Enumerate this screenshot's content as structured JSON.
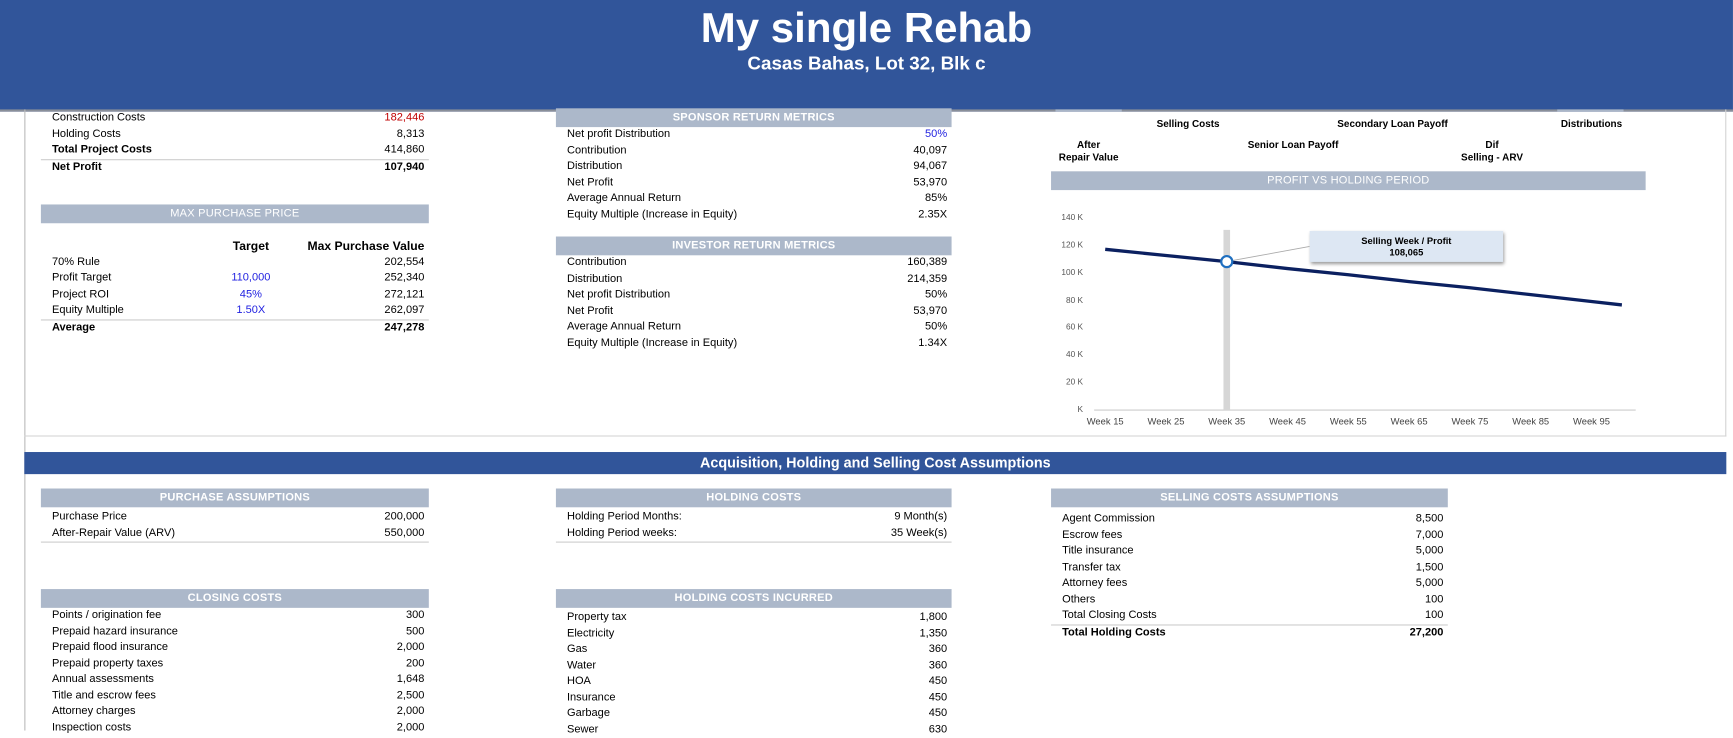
{
  "header": {
    "title": "My single Rehab",
    "subtitle": "Casas Bahas, Lot 32, Blk c"
  },
  "summary": [
    {
      "label": "Construction Costs",
      "value": "182,446",
      "bold": false,
      "valueColor": "#c00000"
    },
    {
      "label": "Holding Costs",
      "value": "8,313",
      "bold": false
    },
    {
      "label": "Total Project Costs",
      "value": "414,860",
      "bold": true
    },
    {
      "label": "Net Profit",
      "value": "107,940",
      "bold": true
    }
  ],
  "max_purchase": {
    "title": "MAX PURCHASE PRICE",
    "col_target": "Target",
    "col_value": "Max Purchase Value",
    "rows": [
      {
        "label": "70% Rule",
        "target": "",
        "value": "202,554"
      },
      {
        "label": "Profit Target",
        "target": "110,000",
        "value": "252,340"
      },
      {
        "label": "Project ROI",
        "target": "45%",
        "value": "272,121"
      },
      {
        "label": "Equity Multiple",
        "target": "1.50X",
        "value": "262,097"
      }
    ],
    "average_label": "Average",
    "average_value": "247,278"
  },
  "sponsor": {
    "title": "SPONSOR RETURN METRICS",
    "rows": [
      {
        "label": "Net profit Distribution",
        "value": "50%",
        "input": true
      },
      {
        "label": "Contribution",
        "value": "40,097"
      },
      {
        "label": "Distribution",
        "value": "94,067"
      },
      {
        "label": "Net Profit",
        "value": "53,970"
      },
      {
        "label": "Average Annual Return",
        "value": "85%"
      },
      {
        "label": "Equity Multiple (Increase in Equity)",
        "value": "2.35X"
      }
    ]
  },
  "investor": {
    "title": "INVESTOR RETURN METRICS",
    "rows": [
      {
        "label": "Contribution",
        "value": "160,389"
      },
      {
        "label": "Distribution",
        "value": "214,359"
      },
      {
        "label": "Net profit Distribution",
        "value": "50%"
      },
      {
        "label": "Net Profit",
        "value": "53,970"
      },
      {
        "label": "Average Annual Return",
        "value": "50%"
      },
      {
        "label": "Equity Multiple (Increase in Equity)",
        "value": "1.34X"
      }
    ]
  },
  "waterfall_labels": {
    "selling_costs": "Selling Costs",
    "secondary_loan": "Secondary Loan Payoff",
    "distributions": "Distributions",
    "after_repair": "After\nRepair Value",
    "senior_loan": "Senior Loan Payoff",
    "dif": "Dif\nSelling - ARV"
  },
  "chart_data": {
    "type": "line",
    "title": "PROFIT VS HOLDING PERIOD",
    "x": [
      15,
      25,
      35,
      45,
      55,
      65,
      75,
      85,
      95,
      100
    ],
    "x_tick_labels": [
      "Week 15",
      "Week 25",
      "Week 35",
      "Week 45",
      "Week 55",
      "Week 65",
      "Week 75",
      "Week 85",
      "Week 95"
    ],
    "y_tick_labels": [
      "K",
      "20 K",
      "40 K",
      "60 K",
      "80 K",
      "100 K",
      "120 K",
      "140 K"
    ],
    "ylim": [
      0,
      140000
    ],
    "series": [
      {
        "values": [
          117000,
          112500,
          108065,
          103000,
          98500,
          93500,
          89000,
          84000,
          79000,
          76500
        ],
        "color": "#0b2060"
      }
    ],
    "highlight": {
      "x": 35,
      "label": "Selling Week / Profit",
      "value": "108,065"
    }
  },
  "section_title": "Acquisition, Holding and Selling Cost Assumptions",
  "purchase": {
    "title": "PURCHASE ASSUMPTIONS",
    "rows": [
      {
        "label": "Purchase Price",
        "value": "200,000"
      },
      {
        "label": "After-Repair Value (ARV)",
        "value": "550,000"
      }
    ]
  },
  "holding": {
    "title": "HOLDING COSTS",
    "rows": [
      {
        "label": "Holding Period Months:",
        "value": "9 Month(s)"
      },
      {
        "label": "Holding Period weeks:",
        "value": "35 Week(s)"
      }
    ]
  },
  "selling": {
    "title": "SELLING COSTS ASSUMPTIONS",
    "rows": [
      {
        "label": "Agent Commission",
        "value": "8,500"
      },
      {
        "label": "Escrow fees",
        "value": "7,000"
      },
      {
        "label": "Title insurance",
        "value": "5,000"
      },
      {
        "label": "Transfer tax",
        "value": "1,500"
      },
      {
        "label": "Attorney fees",
        "value": "5,000"
      },
      {
        "label": "Others",
        "value": "100"
      },
      {
        "label": "Total Closing Costs",
        "value": "100"
      }
    ],
    "total_label": "Total Holding Costs",
    "total_value": "27,200"
  },
  "closing": {
    "title": "CLOSING COSTS",
    "rows": [
      {
        "label": "Points / origination fee",
        "value": "300"
      },
      {
        "label": "Prepaid hazard insurance",
        "value": "500"
      },
      {
        "label": "Prepaid flood insurance",
        "value": "2,000"
      },
      {
        "label": "Prepaid property taxes",
        "value": "200"
      },
      {
        "label": "Annual assessments",
        "value": "1,648"
      },
      {
        "label": "Title and escrow fees",
        "value": "2,500"
      },
      {
        "label": "Attorney charges",
        "value": "2,000"
      },
      {
        "label": "Inspection costs",
        "value": "2,000"
      }
    ]
  },
  "holding_incurred": {
    "title": "HOLDING COSTS INCURRED",
    "rows": [
      {
        "label": "Property tax",
        "value": "1,800"
      },
      {
        "label": "Electricity",
        "value": "1,350"
      },
      {
        "label": "Gas",
        "value": "360"
      },
      {
        "label": "Water",
        "value": "360"
      },
      {
        "label": "HOA",
        "value": "450"
      },
      {
        "label": "Insurance",
        "value": "450"
      },
      {
        "label": "Garbage",
        "value": "450"
      },
      {
        "label": "Sewer",
        "value": "630"
      }
    ]
  }
}
